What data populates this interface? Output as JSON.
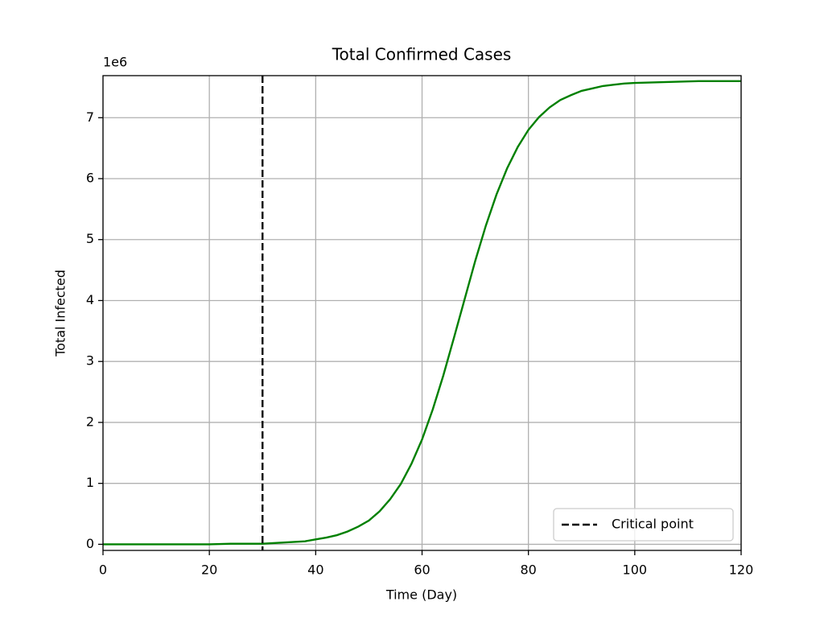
{
  "chart_data": {
    "type": "line",
    "title": "Total Confirmed Cases",
    "xlabel": "Time (Day)",
    "ylabel": "Total Infected",
    "y_offset_label": "1e6",
    "x": [
      0,
      4,
      8,
      12,
      16,
      20,
      24,
      28,
      30,
      32,
      34,
      36,
      38,
      40,
      42,
      44,
      46,
      48,
      50,
      52,
      54,
      56,
      58,
      60,
      62,
      64,
      66,
      68,
      70,
      72,
      74,
      76,
      78,
      80,
      82,
      84,
      86,
      88,
      90,
      92,
      94,
      96,
      98,
      100,
      104,
      108,
      112,
      116,
      120
    ],
    "series": [
      {
        "color": "#008000",
        "values": [
          0,
          0,
          0,
          0,
          0,
          0,
          0.01,
          0.01,
          0.01,
          0.02,
          0.03,
          0.04,
          0.05,
          0.08,
          0.11,
          0.15,
          0.21,
          0.29,
          0.39,
          0.54,
          0.74,
          0.99,
          1.32,
          1.72,
          2.21,
          2.77,
          3.39,
          4.02,
          4.65,
          5.23,
          5.74,
          6.17,
          6.52,
          6.8,
          7.01,
          7.17,
          7.29,
          7.37,
          7.44,
          7.48,
          7.52,
          7.54,
          7.56,
          7.57,
          7.58,
          7.59,
          7.6,
          7.6,
          7.6
        ]
      }
    ],
    "vlines": [
      {
        "x": 30,
        "name": "Critical point",
        "color": "#000000",
        "style": "dashed"
      }
    ],
    "xlim": [
      0,
      120
    ],
    "ylim": [
      -0.1,
      7.69
    ],
    "xticks": [
      0,
      20,
      40,
      60,
      80,
      100,
      120
    ],
    "yticks": [
      0,
      1,
      2,
      3,
      4,
      5,
      6,
      7
    ],
    "grid": true,
    "legend_position": "lower-right"
  }
}
